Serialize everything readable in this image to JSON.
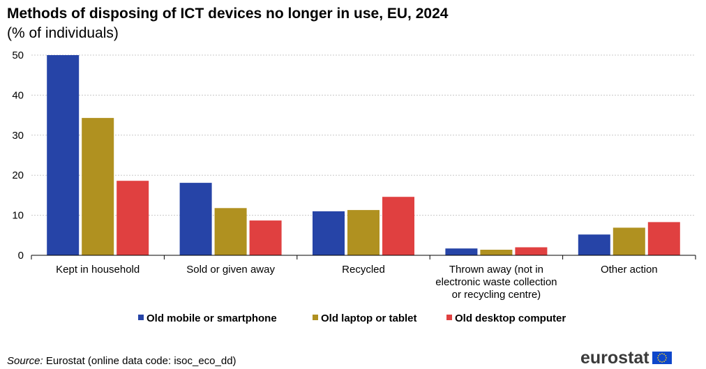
{
  "title": "Methods of disposing of ICT devices no longer in use, EU, 2024",
  "subtitle": "(% of individuals)",
  "source_label": "Source:",
  "source_text": "Eurostat (online data code: isoc_eco_dd)",
  "logo_text": "eurostat",
  "chart_data": {
    "type": "bar",
    "title": "Methods of disposing of ICT devices no longer in use, EU, 2024",
    "subtitle": "(% of individuals)",
    "xlabel": "",
    "ylabel": "",
    "ylim": [
      0,
      50
    ],
    "yticks": [
      0,
      10,
      20,
      30,
      40,
      50
    ],
    "grid": true,
    "legend_position": "bottom",
    "categories": [
      [
        "Kept in household"
      ],
      [
        "Sold or given away"
      ],
      [
        "Recycled"
      ],
      [
        "Thrown away (not in",
        "electronic waste collection",
        "or recycling centre)"
      ],
      [
        "Other action"
      ]
    ],
    "series": [
      {
        "name": "Old mobile or smartphone",
        "color": "#2644a7",
        "values": [
          50.0,
          18.1,
          11.0,
          1.7,
          5.2
        ]
      },
      {
        "name": "Old laptop or tablet",
        "color": "#b09120",
        "values": [
          34.3,
          11.8,
          11.3,
          1.4,
          6.9
        ]
      },
      {
        "name": "Old desktop computer",
        "color": "#e04040",
        "values": [
          18.6,
          8.7,
          14.6,
          2.0,
          8.3
        ]
      }
    ]
  }
}
